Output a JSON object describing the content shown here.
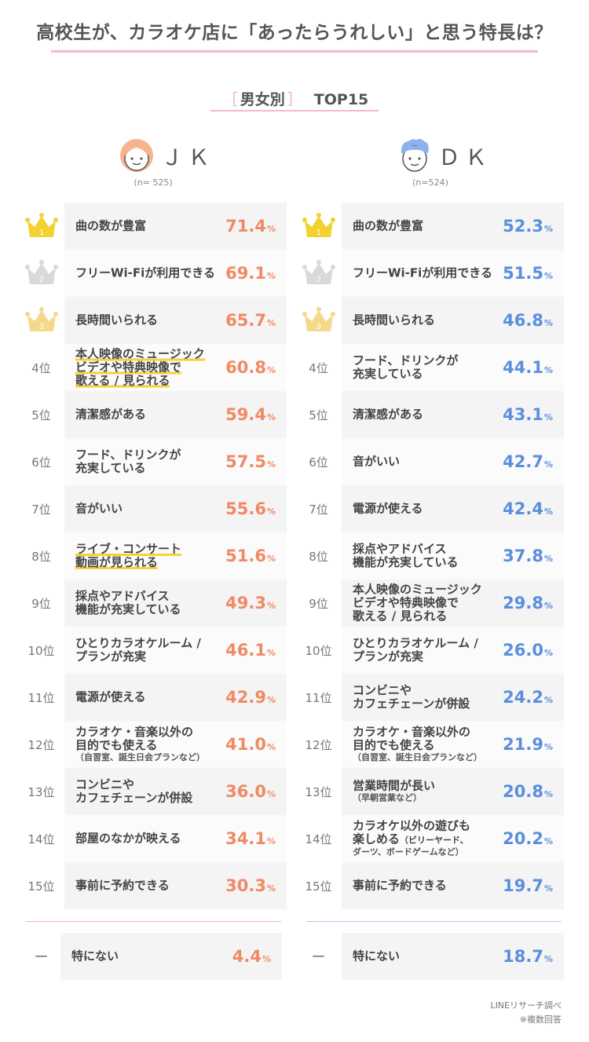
{
  "title": "高校生が、カラオケ店に「あったらうれしい」と思う特長は？",
  "subtitle": {
    "bracket_open": "［",
    "label": "男女別",
    "bracket_close": "］",
    "top": "TOP15"
  },
  "colors": {
    "jk_value": "#f08a64",
    "dk_value": "#5b8fdd",
    "gold": "#f3d22f",
    "silver": "#d9d9d9",
    "bronze": "#f4d98b",
    "highlight": "#f5d23b"
  },
  "chart_data": [
    {
      "type": "table",
      "group": "ＪＫ",
      "n": "(n= 525)",
      "unit": "%",
      "rows": [
        {
          "rank": "1",
          "crown": "gold",
          "label": [
            "曲の数が豊富"
          ],
          "value": "71.4"
        },
        {
          "rank": "2",
          "crown": "silver",
          "label": [
            "フリーWi-Fiが利用できる"
          ],
          "value": "69.1"
        },
        {
          "rank": "3",
          "crown": "bronze",
          "label": [
            "長時間いられる"
          ],
          "value": "65.7"
        },
        {
          "rank": "4位",
          "label": [
            "本人映像のミュージック",
            "ビデオや特典映像で",
            "歌える / 見られる"
          ],
          "highlight": true,
          "value": "60.8"
        },
        {
          "rank": "5位",
          "label": [
            "清潔感がある"
          ],
          "value": "59.4"
        },
        {
          "rank": "6位",
          "label": [
            "フード、ドリンクが",
            "充実している"
          ],
          "value": "57.5"
        },
        {
          "rank": "7位",
          "label": [
            "音がいい"
          ],
          "value": "55.6"
        },
        {
          "rank": "8位",
          "label": [
            "ライブ・コンサート",
            "動画が見られる"
          ],
          "highlight": true,
          "value": "51.6"
        },
        {
          "rank": "9位",
          "label": [
            "採点やアドバイス",
            "機能が充実している"
          ],
          "value": "49.3"
        },
        {
          "rank": "10位",
          "label": [
            "ひとりカラオケルーム /",
            "プランが充実"
          ],
          "value": "46.1"
        },
        {
          "rank": "11位",
          "label": [
            "電源が使える"
          ],
          "value": "42.9"
        },
        {
          "rank": "12位",
          "label": [
            "カラオケ・音楽以外の",
            "目的でも使える"
          ],
          "note": "（自習室、誕生日会プランなど）",
          "value": "41.0"
        },
        {
          "rank": "13位",
          "label": [
            "コンビニや",
            "カフェチェーンが併設"
          ],
          "value": "36.0"
        },
        {
          "rank": "14位",
          "label": [
            "部屋のなかが映える"
          ],
          "value": "34.1"
        },
        {
          "rank": "15位",
          "label": [
            "事前に予約できる"
          ],
          "value": "30.3"
        }
      ],
      "none": {
        "rank": "ー",
        "label": [
          "特にない"
        ],
        "value": "4.4"
      }
    },
    {
      "type": "table",
      "group": "ＤＫ",
      "n": "(n=524)",
      "unit": "%",
      "rows": [
        {
          "rank": "1",
          "crown": "gold",
          "label": [
            "曲の数が豊富"
          ],
          "value": "52.3"
        },
        {
          "rank": "2",
          "crown": "silver",
          "label": [
            "フリーWi-Fiが利用できる"
          ],
          "value": "51.5"
        },
        {
          "rank": "3",
          "crown": "bronze",
          "label": [
            "長時間いられる"
          ],
          "value": "46.8"
        },
        {
          "rank": "4位",
          "label": [
            "フード、ドリンクが",
            "充実している"
          ],
          "value": "44.1"
        },
        {
          "rank": "5位",
          "label": [
            "清潔感がある"
          ],
          "value": "43.1"
        },
        {
          "rank": "6位",
          "label": [
            "音がいい"
          ],
          "value": "42.7"
        },
        {
          "rank": "7位",
          "label": [
            "電源が使える"
          ],
          "value": "42.4"
        },
        {
          "rank": "8位",
          "label": [
            "採点やアドバイス",
            "機能が充実している"
          ],
          "value": "37.8"
        },
        {
          "rank": "9位",
          "label": [
            "本人映像のミュージック",
            "ビデオや特典映像で",
            "歌える / 見られる"
          ],
          "value": "29.8"
        },
        {
          "rank": "10位",
          "label": [
            "ひとりカラオケルーム /",
            "プランが充実"
          ],
          "value": "26.0"
        },
        {
          "rank": "11位",
          "label": [
            "コンビニや",
            "カフェチェーンが併設"
          ],
          "value": "24.2"
        },
        {
          "rank": "12位",
          "label": [
            "カラオケ・音楽以外の",
            "目的でも使える"
          ],
          "note": "（自習室、誕生日会プランなど）",
          "value": "21.9"
        },
        {
          "rank": "13位",
          "label": [
            "営業時間が長い"
          ],
          "note": "（早朝営業など）",
          "value": "20.8"
        },
        {
          "rank": "14位",
          "label": [
            "カラオケ以外の遊びも",
            "楽しめる"
          ],
          "label_suffix": "（ビリーヤード、",
          "note": "ダーツ、ボードゲームなど）",
          "value": "20.2"
        },
        {
          "rank": "15位",
          "label": [
            "事前に予約できる"
          ],
          "value": "19.7"
        }
      ],
      "none": {
        "rank": "ー",
        "label": [
          "特にない"
        ],
        "value": "18.7"
      }
    }
  ],
  "footer": {
    "source": "LINEリサーチ調べ",
    "note": "※複数回答"
  }
}
